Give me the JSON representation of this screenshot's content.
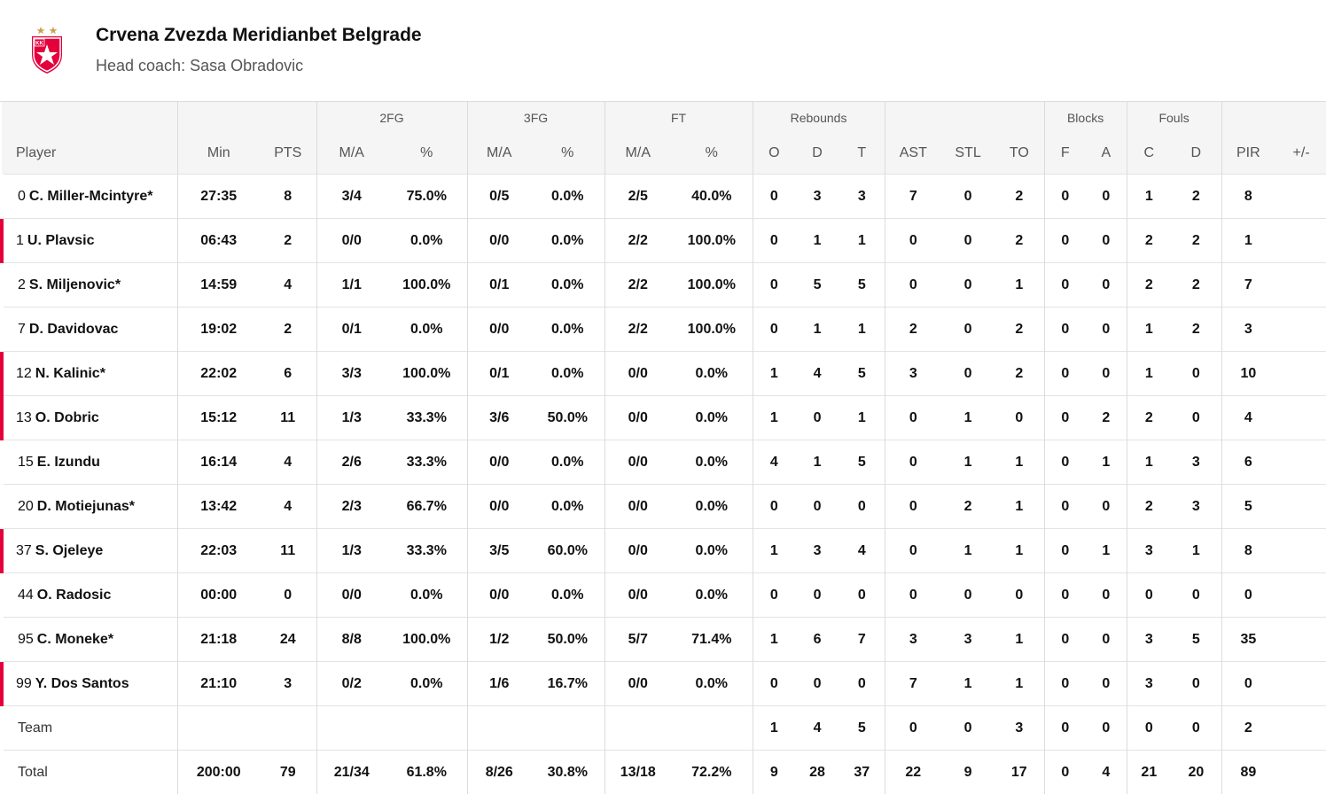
{
  "team": {
    "name": "Crvena Zvezda Meridianbet Belgrade",
    "coach_label": "Head coach:",
    "coach_name": "Sasa Obradovic"
  },
  "colors": {
    "accent": "#e4003b",
    "header_bg": "#f5f5f5",
    "logo_red": "#e4003b",
    "star": "#c8a24a"
  },
  "icons": {
    "logo": "kk-crvena-zvezda-crest-icon"
  },
  "groups": [
    "2FG",
    "3FG",
    "FT",
    "Rebounds",
    "Blocks",
    "Fouls"
  ],
  "columns": [
    "Player",
    "Min",
    "PTS",
    "M/A",
    "%",
    "M/A",
    "%",
    "M/A",
    "%",
    "O",
    "D",
    "T",
    "AST",
    "STL",
    "TO",
    "F",
    "A",
    "C",
    "D",
    "PIR",
    "+/-"
  ],
  "players": [
    {
      "num": "0",
      "name": "C. Miller-Mcintyre*",
      "bench": false,
      "stats": [
        "27:35",
        "8",
        "3/4",
        "75.0%",
        "0/5",
        "0.0%",
        "2/5",
        "40.0%",
        "0",
        "3",
        "3",
        "7",
        "0",
        "2",
        "0",
        "0",
        "1",
        "2",
        "8",
        ""
      ]
    },
    {
      "num": "1",
      "name": "U. Plavsic",
      "bench": true,
      "stats": [
        "06:43",
        "2",
        "0/0",
        "0.0%",
        "0/0",
        "0.0%",
        "2/2",
        "100.0%",
        "0",
        "1",
        "1",
        "0",
        "0",
        "2",
        "0",
        "0",
        "2",
        "2",
        "1",
        ""
      ]
    },
    {
      "num": "2",
      "name": "S. Miljenovic*",
      "bench": false,
      "stats": [
        "14:59",
        "4",
        "1/1",
        "100.0%",
        "0/1",
        "0.0%",
        "2/2",
        "100.0%",
        "0",
        "5",
        "5",
        "0",
        "0",
        "1",
        "0",
        "0",
        "2",
        "2",
        "7",
        ""
      ]
    },
    {
      "num": "7",
      "name": "D. Davidovac",
      "bench": false,
      "stats": [
        "19:02",
        "2",
        "0/1",
        "0.0%",
        "0/0",
        "0.0%",
        "2/2",
        "100.0%",
        "0",
        "1",
        "1",
        "2",
        "0",
        "2",
        "0",
        "0",
        "1",
        "2",
        "3",
        ""
      ]
    },
    {
      "num": "12",
      "name": "N. Kalinic*",
      "bench": true,
      "stats": [
        "22:02",
        "6",
        "3/3",
        "100.0%",
        "0/1",
        "0.0%",
        "0/0",
        "0.0%",
        "1",
        "4",
        "5",
        "3",
        "0",
        "2",
        "0",
        "0",
        "1",
        "0",
        "10",
        ""
      ]
    },
    {
      "num": "13",
      "name": "O. Dobric",
      "bench": true,
      "stats": [
        "15:12",
        "11",
        "1/3",
        "33.3%",
        "3/6",
        "50.0%",
        "0/0",
        "0.0%",
        "1",
        "0",
        "1",
        "0",
        "1",
        "0",
        "0",
        "2",
        "2",
        "0",
        "4",
        ""
      ]
    },
    {
      "num": "15",
      "name": "E. Izundu",
      "bench": false,
      "stats": [
        "16:14",
        "4",
        "2/6",
        "33.3%",
        "0/0",
        "0.0%",
        "0/0",
        "0.0%",
        "4",
        "1",
        "5",
        "0",
        "1",
        "1",
        "0",
        "1",
        "1",
        "3",
        "6",
        ""
      ]
    },
    {
      "num": "20",
      "name": "D. Motiejunas*",
      "bench": false,
      "stats": [
        "13:42",
        "4",
        "2/3",
        "66.7%",
        "0/0",
        "0.0%",
        "0/0",
        "0.0%",
        "0",
        "0",
        "0",
        "0",
        "2",
        "1",
        "0",
        "0",
        "2",
        "3",
        "5",
        ""
      ]
    },
    {
      "num": "37",
      "name": "S. Ojeleye",
      "bench": true,
      "stats": [
        "22:03",
        "11",
        "1/3",
        "33.3%",
        "3/5",
        "60.0%",
        "0/0",
        "0.0%",
        "1",
        "3",
        "4",
        "0",
        "1",
        "1",
        "0",
        "1",
        "3",
        "1",
        "8",
        ""
      ]
    },
    {
      "num": "44",
      "name": "O. Radosic",
      "bench": false,
      "stats": [
        "00:00",
        "0",
        "0/0",
        "0.0%",
        "0/0",
        "0.0%",
        "0/0",
        "0.0%",
        "0",
        "0",
        "0",
        "0",
        "0",
        "0",
        "0",
        "0",
        "0",
        "0",
        "0",
        ""
      ]
    },
    {
      "num": "95",
      "name": "C. Moneke*",
      "bench": false,
      "stats": [
        "21:18",
        "24",
        "8/8",
        "100.0%",
        "1/2",
        "50.0%",
        "5/7",
        "71.4%",
        "1",
        "6",
        "7",
        "3",
        "3",
        "1",
        "0",
        "0",
        "3",
        "5",
        "35",
        ""
      ]
    },
    {
      "num": "99",
      "name": "Y. Dos Santos",
      "bench": true,
      "stats": [
        "21:10",
        "3",
        "0/2",
        "0.0%",
        "1/6",
        "16.7%",
        "0/0",
        "0.0%",
        "0",
        "0",
        "0",
        "7",
        "1",
        "1",
        "0",
        "0",
        "3",
        "0",
        "0",
        ""
      ]
    }
  ],
  "team_row": {
    "label": "Team",
    "stats": [
      "",
      "",
      "",
      "",
      "",
      "",
      "",
      "",
      "1",
      "4",
      "5",
      "0",
      "0",
      "3",
      "0",
      "0",
      "0",
      "0",
      "2",
      ""
    ]
  },
  "total_row": {
    "label": "Total",
    "stats": [
      "200:00",
      "79",
      "21/34",
      "61.8%",
      "8/26",
      "30.8%",
      "13/18",
      "72.2%",
      "9",
      "28",
      "37",
      "22",
      "9",
      "17",
      "0",
      "4",
      "21",
      "20",
      "89",
      ""
    ]
  }
}
